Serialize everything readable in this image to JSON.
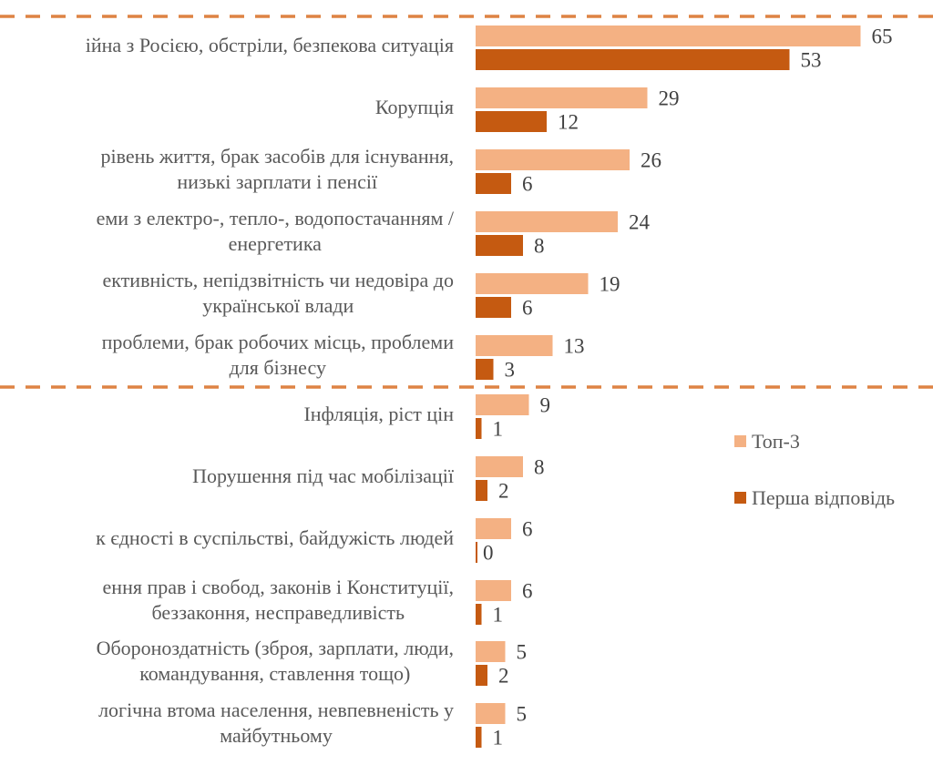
{
  "chart_data": {
    "type": "bar",
    "orientation": "horizontal",
    "title": "",
    "xlabel": "",
    "ylabel": "",
    "xlim": [
      0,
      70
    ],
    "grid": false,
    "legend_position": "right",
    "categories": [
      [
        "ійна з Росією, обстріли, безпекова ситуація"
      ],
      [
        "Корупція"
      ],
      [
        "рівень життя, брак засобів для існування,",
        "низькі зарплати і пенсії"
      ],
      [
        "еми з електро-, тепло-, водопостачанням /",
        "енергетика"
      ],
      [
        "ективність, непідзвітність чи недовіра до",
        "української влади"
      ],
      [
        "проблеми, брак робочих місць, проблеми",
        "для бізнесу"
      ],
      [
        "Інфляція, ріст цін"
      ],
      [
        "Порушення під час мобілізації"
      ],
      [
        "к єдності в суспільстві, байдужість людей"
      ],
      [
        "ення прав і свобод, законів і Конституції,",
        "беззаконня, несправедливість"
      ],
      [
        "Обороноздатність (зброя, зарплати, люди,",
        "командування, ставлення тощо)"
      ],
      [
        "логічна втома населення, невпевненість у",
        "майбутньому"
      ]
    ],
    "series": [
      {
        "name": "Топ-3",
        "color": "#F4B183",
        "values": [
          65,
          29,
          26,
          24,
          19,
          13,
          9,
          8,
          6,
          6,
          5,
          5
        ]
      },
      {
        "name": "Перша відповідь",
        "color": "#C55A11",
        "values": [
          53,
          12,
          6,
          8,
          6,
          3,
          1,
          2,
          0,
          1,
          2,
          1
        ]
      }
    ],
    "separator_color": "#DE8344",
    "group_separators_after_index": [
      5
    ]
  }
}
